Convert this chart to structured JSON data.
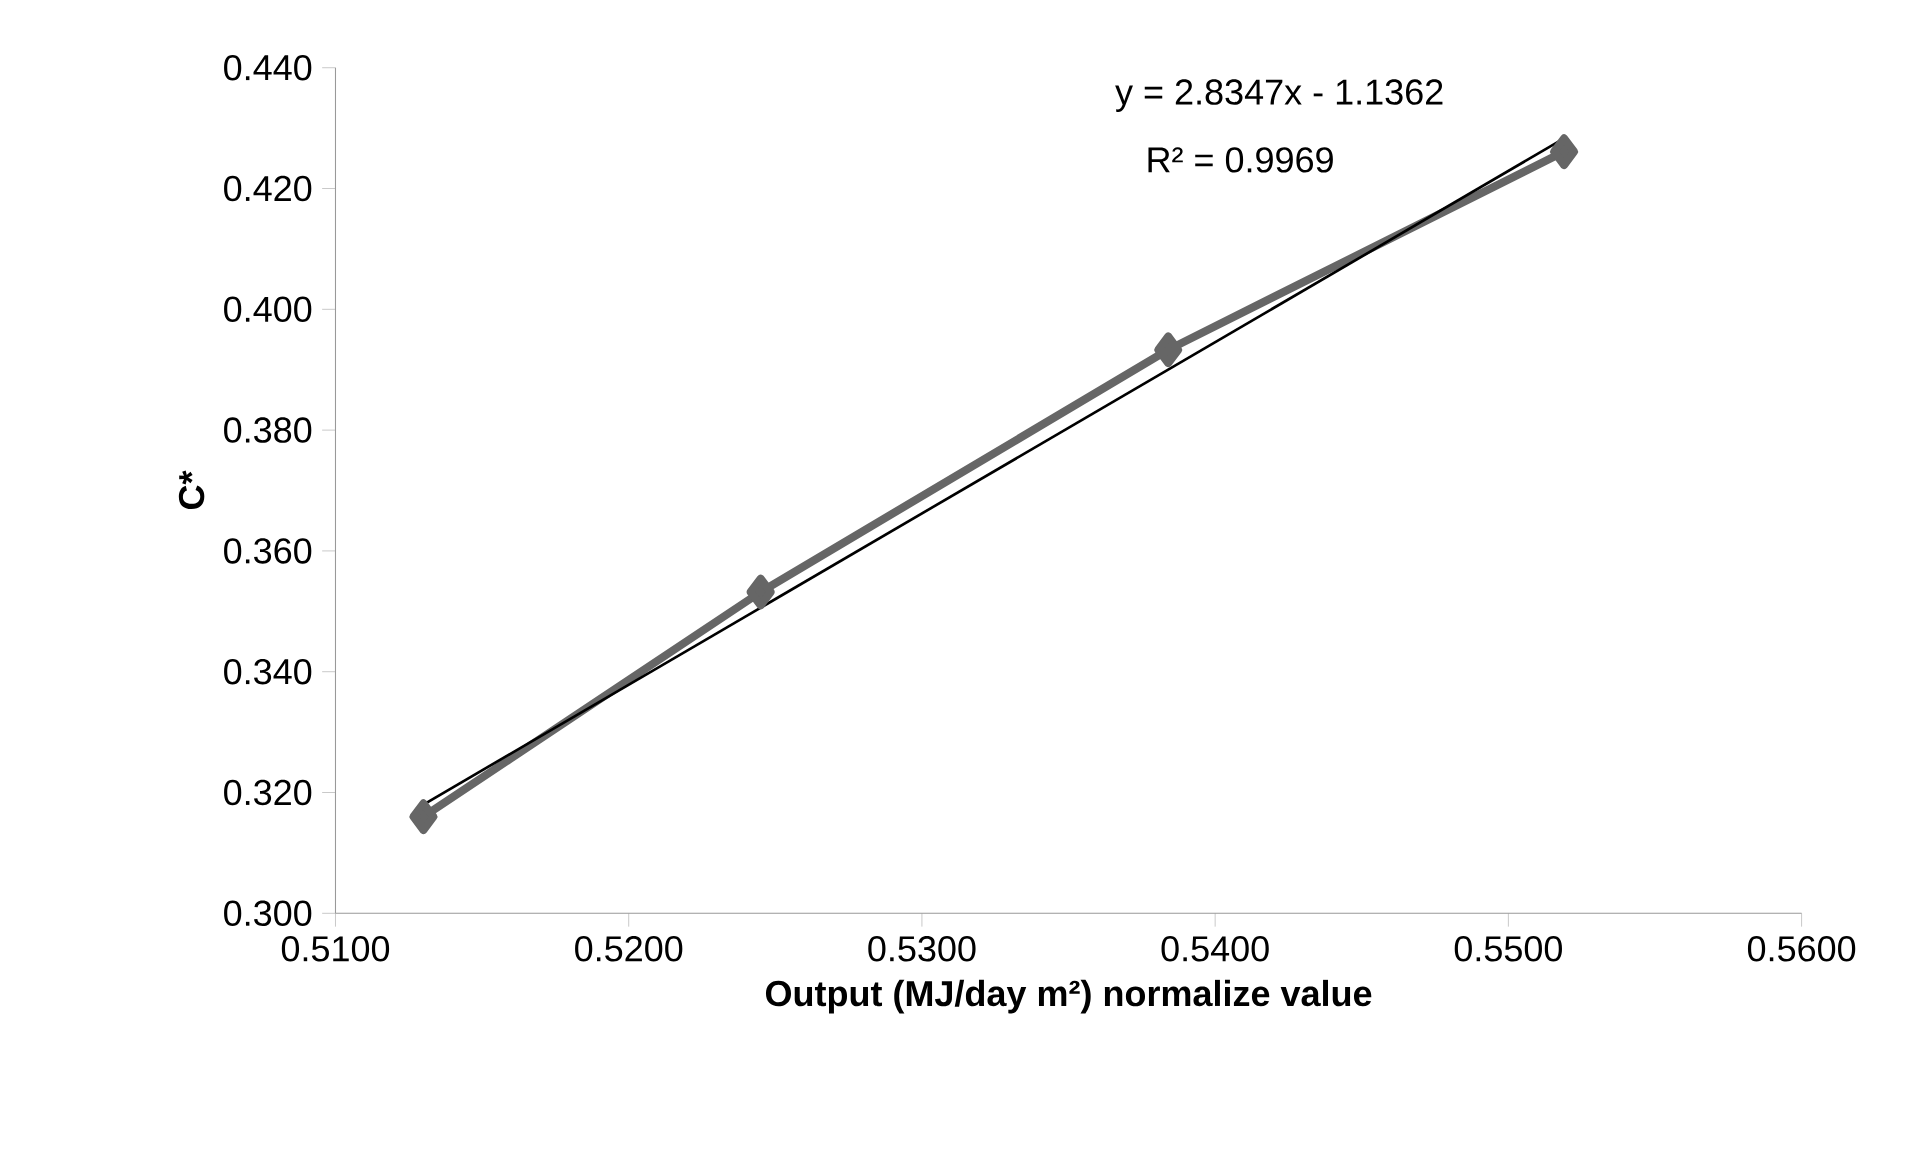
{
  "chart_data": {
    "type": "line",
    "xlabel": "Output (MJ/day m²) normalize value",
    "ylabel": "C*",
    "x": [
      0.513,
      0.5245,
      0.5384,
      0.5519
    ],
    "series": [
      {
        "color": "#666666",
        "marker": "diamond",
        "values": [
          0.316,
          0.3532,
          0.3933,
          0.4261
        ]
      },
      {
        "type": "line",
        "color": "#000000",
        "marker": "none",
        "x": [
          0.513,
          0.5519
        ],
        "values": [
          0.318,
          0.4283
        ]
      }
    ],
    "xlim": [
      0.51,
      0.56
    ],
    "xticks": [
      {
        "value": 0.51,
        "label": "0.5100"
      },
      {
        "value": 0.52,
        "label": "0.5200"
      },
      {
        "value": 0.53,
        "label": "0.5300"
      },
      {
        "value": 0.54,
        "label": "0.5400"
      },
      {
        "value": 0.55,
        "label": "0.5500"
      },
      {
        "value": 0.56,
        "label": "0.5600"
      }
    ],
    "ylim": [
      0.3,
      0.44
    ],
    "yticks": [
      {
        "value": 0.3,
        "label": "0.300"
      },
      {
        "value": 0.32,
        "label": "0.320"
      },
      {
        "value": 0.34,
        "label": "0.340"
      },
      {
        "value": 0.36,
        "label": "0.360"
      },
      {
        "value": 0.38,
        "label": "0.380"
      },
      {
        "value": 0.4,
        "label": "0.400"
      },
      {
        "value": 0.42,
        "label": "0.420"
      },
      {
        "value": 0.44,
        "label": "0.440"
      }
    ],
    "annotations": [
      "y = 2.8347x - 1.1362",
      "R² = 0.9969"
    ]
  }
}
